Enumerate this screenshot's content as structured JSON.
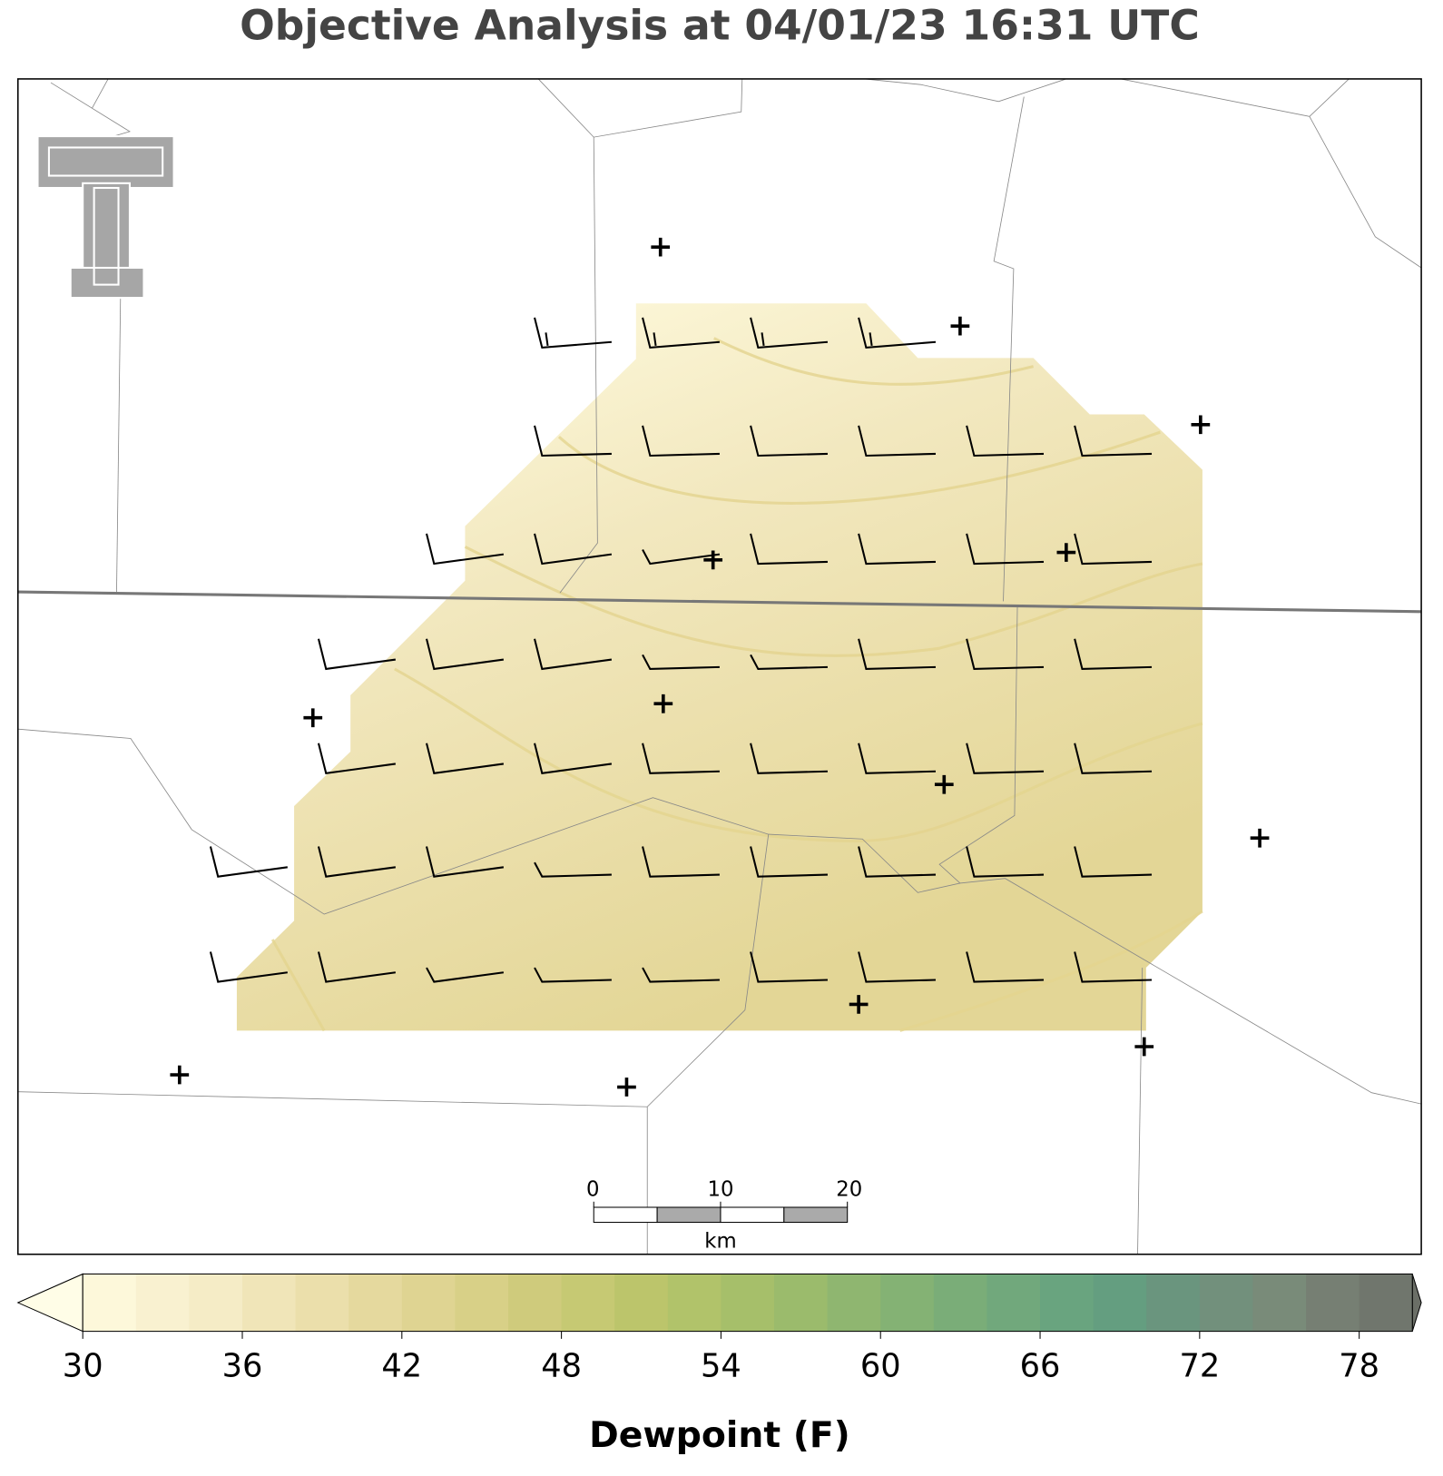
{
  "title": "Objective Analysis at 04/01/23 16:31 UTC",
  "colorbar": {
    "label": "Dewpoint (F)",
    "lim": [
      30,
      80
    ],
    "ticks": [
      30,
      36,
      42,
      48,
      54,
      60,
      66,
      72,
      78
    ],
    "colors": [
      "#fdf8da",
      "#f9f1d0",
      "#f5ecc6",
      "#f0e5b8",
      "#ebdfab",
      "#e5d99e",
      "#dfd492",
      "#d8d087",
      "#cfcb7c",
      "#c6c973",
      "#bcc56b",
      "#b1c36a",
      "#a6bf6a",
      "#9bbb6c",
      "#8fb670",
      "#84b274",
      "#7aad78",
      "#71a87c",
      "#69a47f",
      "#649e80",
      "#6a957e",
      "#72907c",
      "#798b79",
      "#767f73",
      "#70766d"
    ],
    "under_color": "#fffde7",
    "over_color": "#6b6f67"
  },
  "scale_bar": {
    "ticks": [
      0,
      10,
      20
    ],
    "unit": "km"
  }
}
